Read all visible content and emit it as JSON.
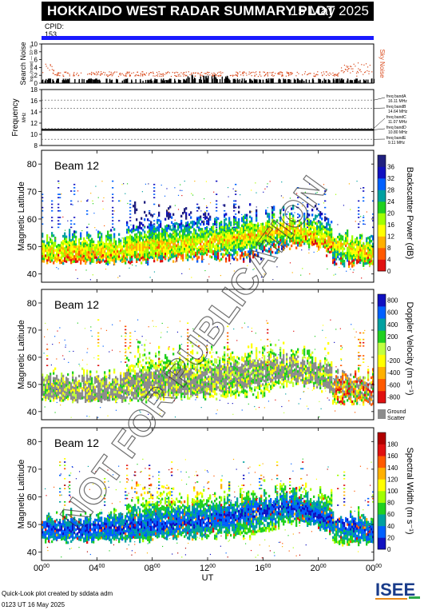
{
  "header": {
    "title": "HOKKAIDO WEST RADAR SUMMARY PLOT",
    "date": "15 May 2025",
    "cpid_label": "CPID:",
    "cpid_value": "153"
  },
  "colors": {
    "cpid_bar": "#1a1aff",
    "noise_search": "#000000",
    "noise_sky": "#d94a1c",
    "ground_scatter": "#8c8c8c"
  },
  "noise_panel": {
    "ylabel": "Search Noise",
    "ylabel_sub": "log₁₀(noise) — 10⁻³⁰",
    "right_label": "Sky Noise",
    "yticks": [
      0,
      2,
      4,
      6,
      8,
      10
    ],
    "ylim": [
      0,
      10
    ]
  },
  "frequency_panel": {
    "ylabel": "Frequency",
    "ylabel_unit": "MHz",
    "yticks": [
      8,
      10,
      12,
      14,
      16,
      18
    ],
    "ylim": [
      8,
      18
    ],
    "bands": [
      {
        "label": "freq bandA",
        "value": "16.11 MHz",
        "freq": 16.11
      },
      {
        "label": "freq bandB",
        "value": "14.64 MHz",
        "freq": 14.64
      },
      {
        "label": "freq bandC",
        "value": "11.07 MHz",
        "freq": 11.07
      },
      {
        "label": "freq bandD",
        "value": "10.80 MHz",
        "freq": 10.8
      },
      {
        "label": "freq bandE",
        "value": "9.11 MHz",
        "freq": 9.11
      }
    ]
  },
  "panels": [
    {
      "key": "power",
      "beam_label": "Beam 12",
      "ylabel": "Magnetic Latitude",
      "yticks": [
        40,
        50,
        60,
        70,
        80
      ],
      "colorbar_label": "Backscatter Power (dB)",
      "colorbar_ticks": [
        "0",
        "4",
        "8",
        "12",
        "16",
        "20",
        "24",
        "28",
        "32",
        "36"
      ],
      "colorbar_colors": [
        "#e01010",
        "#ff5a00",
        "#ffb000",
        "#ffff00",
        "#a0ff00",
        "#20d020",
        "#00a0a0",
        "#0060ff",
        "#1010c0",
        "#202080"
      ]
    },
    {
      "key": "velocity",
      "beam_label": "Beam 12",
      "ylabel": "Magnetic Latitude",
      "yticks": [
        40,
        50,
        60,
        70,
        80
      ],
      "colorbar_label": "Doppler Velocity (m s⁻¹)",
      "colorbar_ticks": [
        "-800",
        "-600",
        "-400",
        "-200",
        "0",
        "200",
        "400",
        "600",
        "800"
      ],
      "colorbar_colors": [
        "#e01010",
        "#ff5a00",
        "#ffb000",
        "#ffff00",
        "#c0ff40",
        "#20d020",
        "#00a0a0",
        "#0060ff",
        "#1010c0"
      ],
      "ground_scatter_label": [
        "Ground",
        "Scatter"
      ]
    },
    {
      "key": "width",
      "beam_label": "Beam 12",
      "ylabel": "Magnetic Latitude",
      "yticks": [
        40,
        50,
        60,
        70,
        80
      ],
      "colorbar_label": "Spectral Width (m s⁻¹)",
      "colorbar_ticks": [
        "0",
        "20",
        "40",
        "60",
        "80",
        "100",
        "120",
        "140",
        "160",
        "180"
      ],
      "colorbar_colors": [
        "#1010c0",
        "#0060ff",
        "#00a0a0",
        "#20d020",
        "#a0ff00",
        "#ffff00",
        "#ffb000",
        "#ff5a00",
        "#e01010",
        "#b00000"
      ]
    }
  ],
  "xaxis": {
    "label": "UT",
    "ticks": [
      {
        "h": "00",
        "m": "00"
      },
      {
        "h": "04",
        "m": "00"
      },
      {
        "h": "08",
        "m": "00"
      },
      {
        "h": "12",
        "m": "00"
      },
      {
        "h": "16",
        "m": "00"
      },
      {
        "h": "20",
        "m": "00"
      },
      {
        "h": "00",
        "m": "00"
      }
    ]
  },
  "watermark": "NOT FOR PUBLICATION",
  "footer": {
    "line1": "Quick-Look plot created by sddata adm",
    "line2": "0123 UT 16 May 2025"
  },
  "logo_text": "ISEE",
  "chart_data": {
    "type": "heatmap",
    "x": "UT (hours)",
    "xlim": [
      0,
      24
    ],
    "ylim": [
      37,
      85
    ],
    "noise_ylim": [
      0,
      10
    ],
    "freq_ylim": [
      8,
      18
    ]
  }
}
